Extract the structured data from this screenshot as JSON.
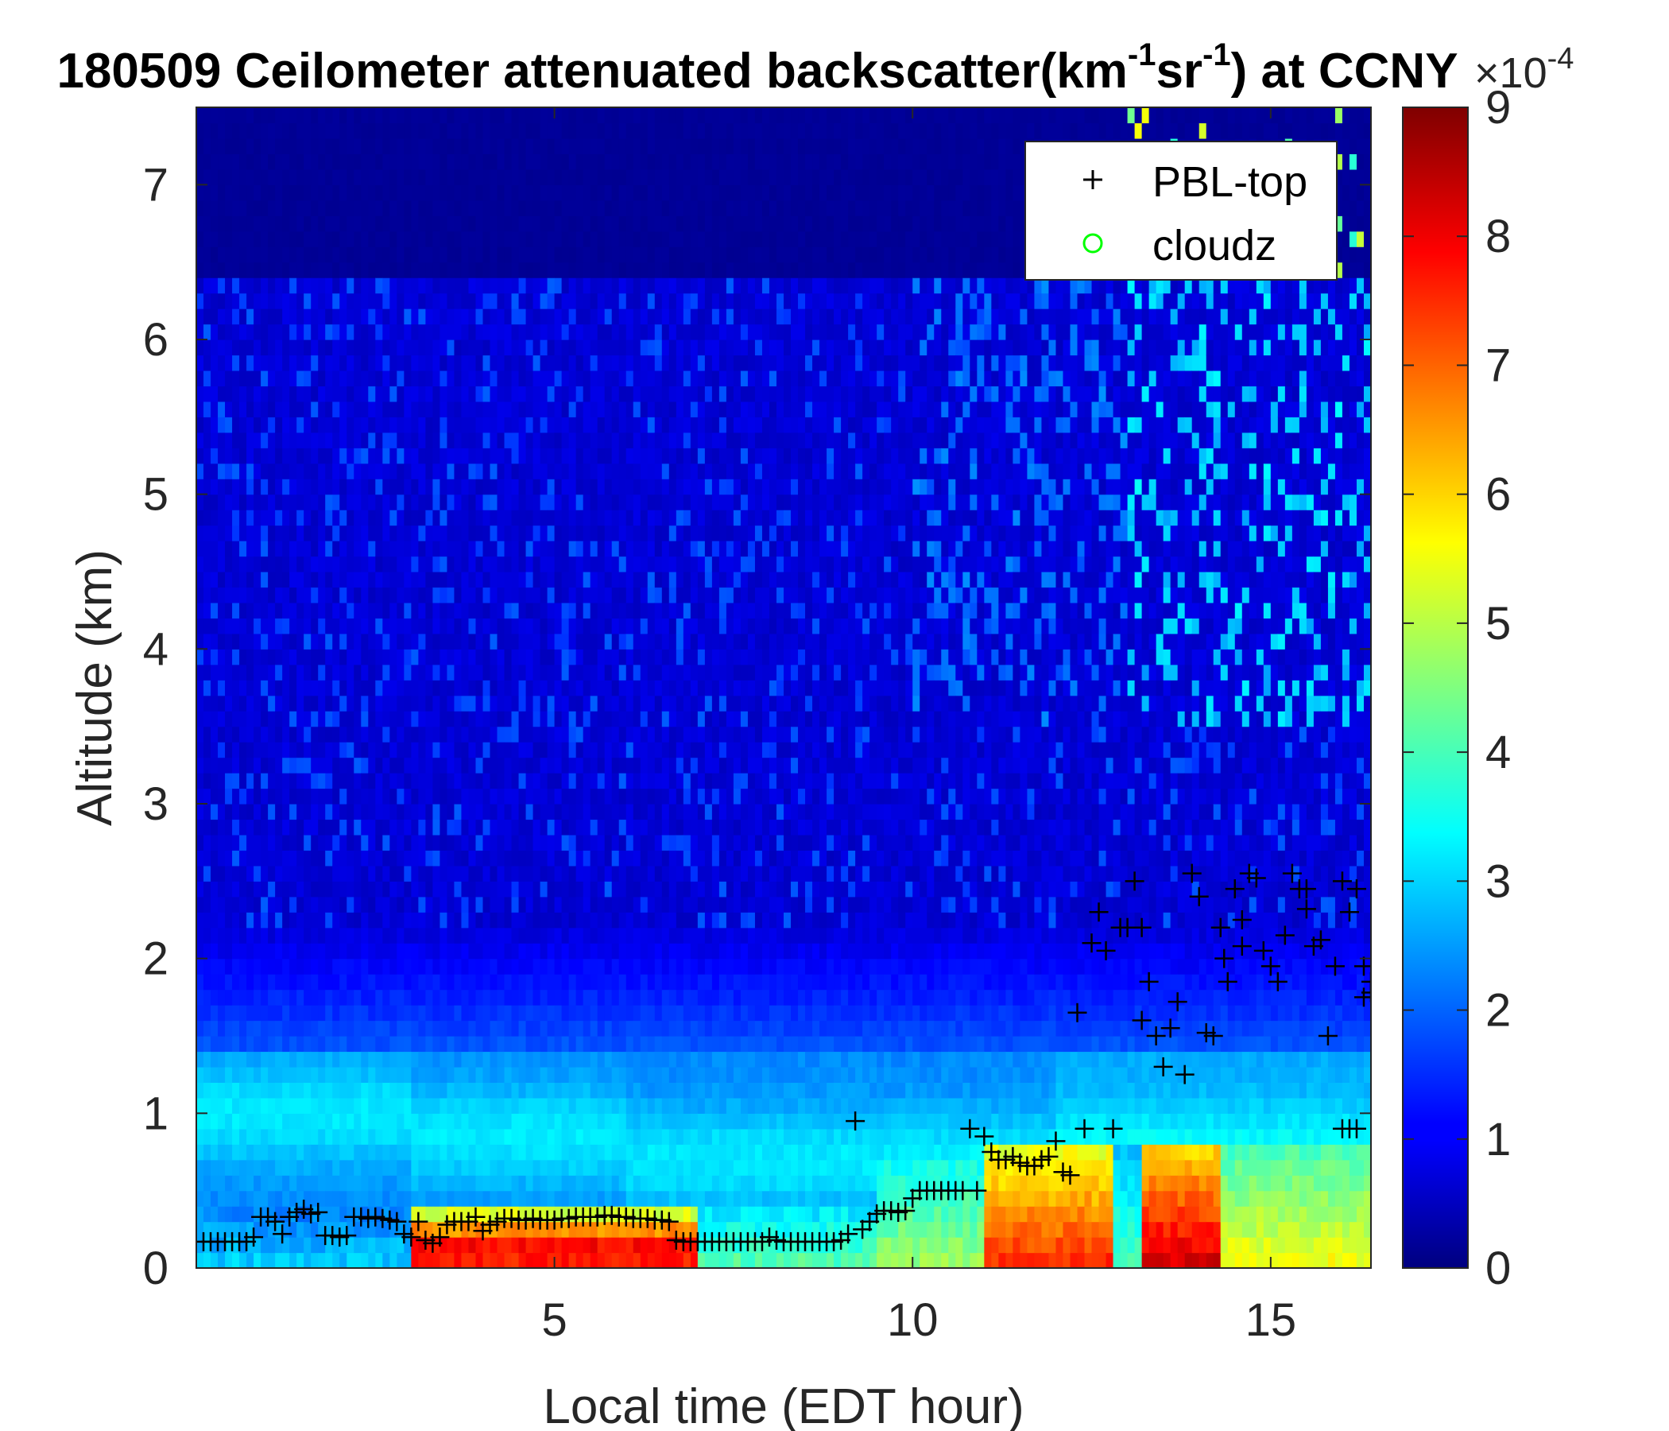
{
  "chart_data": {
    "type": "heatmap",
    "title_parts": {
      "prefix": "180509 Ceilometer attenuated backscatter(km",
      "sup1": "-1",
      "mid": "sr",
      "sup2": "-1",
      "suffix": ") at CCNY"
    },
    "xlabel": "Local time (EDT hour)",
    "ylabel": "Altitude (km)",
    "xlim": [
      0,
      16.4
    ],
    "ylim": [
      0,
      7.5
    ],
    "x_ticks": [
      5,
      10,
      15
    ],
    "x_tick_labels": [
      "5",
      "10",
      "15"
    ],
    "y_ticks": [
      0,
      1,
      2,
      3,
      4,
      5,
      6,
      7
    ],
    "y_tick_labels": [
      "0",
      "1",
      "2",
      "3",
      "4",
      "5",
      "6",
      "7"
    ],
    "colorbar": {
      "min": 0,
      "max": 9,
      "ticks": [
        0,
        1,
        2,
        3,
        4,
        5,
        6,
        7,
        8,
        9
      ],
      "tick_labels": [
        "0",
        "1",
        "2",
        "3",
        "4",
        "5",
        "6",
        "7",
        "8",
        "9"
      ],
      "exponent_base": "×10",
      "exponent": "-4",
      "colormap": "jet"
    },
    "legend": {
      "placement": "top-right",
      "entries": [
        {
          "label": "PBL-top",
          "marker": "+",
          "color": "#000000"
        },
        {
          "label": "cloudz",
          "marker": "o",
          "color": "#00ff00"
        }
      ]
    },
    "series": [
      {
        "name": "PBL-top",
        "marker": "+",
        "color": "#000000",
        "points": [
          [
            0.1,
            0.17
          ],
          [
            0.2,
            0.17
          ],
          [
            0.3,
            0.17
          ],
          [
            0.4,
            0.17
          ],
          [
            0.5,
            0.17
          ],
          [
            0.6,
            0.17
          ],
          [
            0.7,
            0.17
          ],
          [
            0.8,
            0.2
          ],
          [
            0.9,
            0.33
          ],
          [
            1.0,
            0.33
          ],
          [
            1.1,
            0.3
          ],
          [
            1.2,
            0.22
          ],
          [
            1.3,
            0.33
          ],
          [
            1.4,
            0.36
          ],
          [
            1.5,
            0.38
          ],
          [
            1.6,
            0.35
          ],
          [
            1.7,
            0.36
          ],
          [
            1.8,
            0.21
          ],
          [
            1.9,
            0.21
          ],
          [
            2.0,
            0.2
          ],
          [
            2.1,
            0.21
          ],
          [
            2.2,
            0.33
          ],
          [
            2.3,
            0.33
          ],
          [
            2.4,
            0.32
          ],
          [
            2.5,
            0.33
          ],
          [
            2.6,
            0.32
          ],
          [
            2.7,
            0.31
          ],
          [
            2.8,
            0.3
          ],
          [
            2.9,
            0.22
          ],
          [
            3.0,
            0.2
          ],
          [
            3.1,
            0.3
          ],
          [
            3.2,
            0.18
          ],
          [
            3.3,
            0.16
          ],
          [
            3.4,
            0.2
          ],
          [
            3.5,
            0.28
          ],
          [
            3.6,
            0.3
          ],
          [
            3.7,
            0.3
          ],
          [
            3.8,
            0.3
          ],
          [
            3.9,
            0.33
          ],
          [
            4.0,
            0.24
          ],
          [
            4.1,
            0.28
          ],
          [
            4.2,
            0.3
          ],
          [
            4.3,
            0.32
          ],
          [
            4.4,
            0.32
          ],
          [
            4.5,
            0.31
          ],
          [
            4.6,
            0.31
          ],
          [
            4.7,
            0.32
          ],
          [
            4.8,
            0.31
          ],
          [
            4.9,
            0.31
          ],
          [
            5.0,
            0.31
          ],
          [
            5.1,
            0.32
          ],
          [
            5.2,
            0.32
          ],
          [
            5.3,
            0.33
          ],
          [
            5.4,
            0.33
          ],
          [
            5.5,
            0.33
          ],
          [
            5.6,
            0.33
          ],
          [
            5.7,
            0.34
          ],
          [
            5.8,
            0.34
          ],
          [
            5.9,
            0.33
          ],
          [
            6.0,
            0.33
          ],
          [
            6.1,
            0.32
          ],
          [
            6.2,
            0.32
          ],
          [
            6.3,
            0.32
          ],
          [
            6.4,
            0.31
          ],
          [
            6.5,
            0.31
          ],
          [
            6.6,
            0.3
          ],
          [
            6.7,
            0.18
          ],
          [
            6.8,
            0.17
          ],
          [
            6.9,
            0.17
          ],
          [
            7.0,
            0.17
          ],
          [
            7.1,
            0.17
          ],
          [
            7.2,
            0.17
          ],
          [
            7.3,
            0.17
          ],
          [
            7.4,
            0.17
          ],
          [
            7.5,
            0.17
          ],
          [
            7.6,
            0.17
          ],
          [
            7.7,
            0.17
          ],
          [
            7.8,
            0.17
          ],
          [
            7.9,
            0.17
          ],
          [
            8.0,
            0.2
          ],
          [
            8.1,
            0.18
          ],
          [
            8.2,
            0.17
          ],
          [
            8.3,
            0.17
          ],
          [
            8.4,
            0.17
          ],
          [
            8.5,
            0.17
          ],
          [
            8.6,
            0.17
          ],
          [
            8.7,
            0.17
          ],
          [
            8.8,
            0.17
          ],
          [
            8.9,
            0.17
          ],
          [
            9.0,
            0.18
          ],
          [
            9.1,
            0.22
          ],
          [
            9.2,
            0.95
          ],
          [
            9.3,
            0.25
          ],
          [
            9.4,
            0.3
          ],
          [
            9.5,
            0.35
          ],
          [
            9.6,
            0.37
          ],
          [
            9.7,
            0.37
          ],
          [
            9.8,
            0.36
          ],
          [
            9.9,
            0.37
          ],
          [
            10.0,
            0.45
          ],
          [
            10.1,
            0.5
          ],
          [
            10.2,
            0.5
          ],
          [
            10.3,
            0.5
          ],
          [
            10.4,
            0.5
          ],
          [
            10.5,
            0.5
          ],
          [
            10.6,
            0.5
          ],
          [
            10.7,
            0.5
          ],
          [
            10.8,
            0.9
          ],
          [
            10.9,
            0.5
          ],
          [
            11.0,
            0.85
          ],
          [
            11.1,
            0.75
          ],
          [
            11.2,
            0.7
          ],
          [
            11.3,
            0.7
          ],
          [
            11.4,
            0.72
          ],
          [
            11.5,
            0.68
          ],
          [
            11.6,
            0.66
          ],
          [
            11.7,
            0.66
          ],
          [
            11.8,
            0.7
          ],
          [
            11.9,
            0.72
          ],
          [
            12.0,
            0.82
          ],
          [
            12.1,
            0.62
          ],
          [
            12.2,
            0.6
          ],
          [
            12.3,
            1.65
          ],
          [
            12.4,
            0.9
          ],
          [
            12.5,
            2.1
          ],
          [
            12.6,
            2.3
          ],
          [
            12.7,
            2.05
          ],
          [
            12.8,
            0.9
          ],
          [
            12.9,
            2.2
          ],
          [
            13.0,
            2.2
          ],
          [
            13.1,
            2.5
          ],
          [
            13.2,
            2.2
          ],
          [
            13.3,
            1.85
          ],
          [
            13.4,
            1.5
          ],
          [
            13.5,
            1.3
          ],
          [
            13.6,
            1.55
          ],
          [
            13.7,
            1.72
          ],
          [
            13.8,
            1.25
          ],
          [
            13.9,
            2.55
          ],
          [
            14.0,
            2.4
          ],
          [
            14.1,
            1.52
          ],
          [
            14.2,
            1.5
          ],
          [
            14.3,
            2.2
          ],
          [
            14.4,
            1.85
          ],
          [
            14.5,
            2.45
          ],
          [
            14.6,
            2.25
          ],
          [
            14.7,
            2.55
          ],
          [
            14.8,
            2.52
          ],
          [
            14.9,
            2.05
          ],
          [
            15.0,
            1.95
          ],
          [
            15.1,
            1.85
          ],
          [
            15.2,
            2.15
          ],
          [
            15.3,
            2.55
          ],
          [
            15.4,
            2.45
          ],
          [
            15.5,
            2.45
          ],
          [
            15.6,
            2.08
          ],
          [
            15.7,
            2.12
          ],
          [
            15.8,
            1.5
          ],
          [
            15.9,
            1.95
          ],
          [
            16.0,
            2.5
          ],
          [
            16.1,
            2.3
          ],
          [
            16.2,
            2.45
          ],
          [
            16.3,
            1.95
          ],
          [
            16.4,
            1.85
          ],
          [
            16.0,
            0.9
          ],
          [
            16.1,
            0.9
          ],
          [
            16.2,
            0.9
          ],
          [
            16.3,
            1.75
          ],
          [
            16.4,
            1.78
          ],
          [
            13.2,
            1.6
          ],
          [
            14.6,
            2.08
          ],
          [
            15.5,
            2.32
          ],
          [
            14.35,
            2.0
          ]
        ]
      },
      {
        "name": "cloudz",
        "marker": "o",
        "color": "#00ff00",
        "points": []
      }
    ],
    "grid": false
  }
}
